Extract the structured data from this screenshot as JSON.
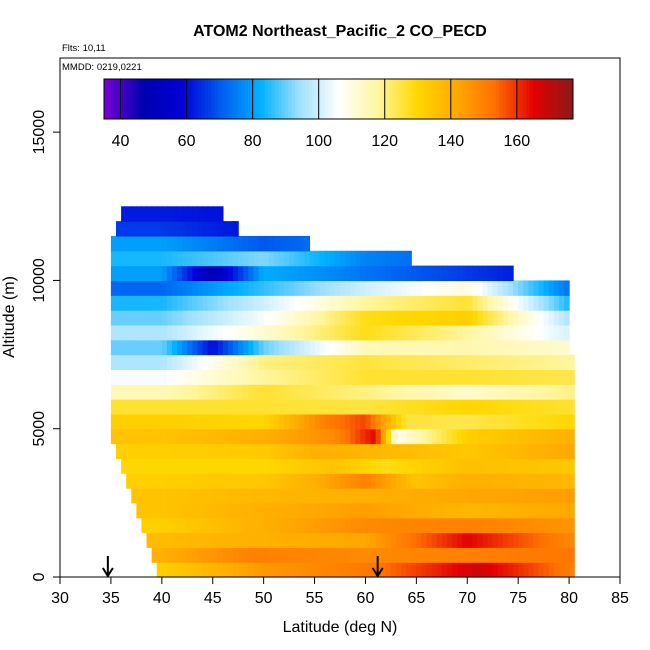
{
  "chart_data": {
    "type": "heatmap",
    "title": "ATOM2 Northeast_Pacific_2 CO_PECD",
    "flights_label": "Flts: 10,11",
    "dates_label": "MMDD: 0219,0221",
    "xlabel": "Latitude (deg N)",
    "ylabel": "Altitude (m)",
    "xlim": [
      30,
      85
    ],
    "ylim": [
      0,
      17500
    ],
    "x_ticks": [
      "30",
      "35",
      "40",
      "45",
      "50",
      "55",
      "60",
      "65",
      "70",
      "75",
      "80",
      "85"
    ],
    "y_ticks": [
      "0",
      "5000",
      "10000",
      "15000"
    ],
    "colorbar": {
      "min": 35,
      "max": 177,
      "tick_labels": [
        "40",
        "60",
        "80",
        "100",
        "120",
        "140",
        "160"
      ],
      "tick_values": [
        40,
        60,
        80,
        100,
        120,
        140,
        160
      ],
      "colors": [
        "#7a00d8",
        "#0000b0",
        "#0000d8",
        "#005cf0",
        "#00b0ff",
        "#9fe0ff",
        "#ffffff",
        "#fff6a0",
        "#ffd800",
        "#ffaa00",
        "#ff7000",
        "#e20000",
        "#8b1a1a"
      ]
    },
    "latitude_coverage": [
      {
        "alt": 0,
        "lat_min": 40,
        "lat_max": 80.5
      },
      {
        "alt": 5000,
        "lat_min": 35,
        "lat_max": 80.5
      },
      {
        "alt": 10000,
        "lat_min": 35,
        "lat_max": 79.5
      },
      {
        "alt": 11500,
        "lat_min": 35,
        "lat_max": 49
      },
      {
        "alt": 12000,
        "lat_min": 36,
        "lat_max": 46
      }
    ],
    "bands": [
      {
        "alt": 0,
        "stops": [
          [
            40,
            132
          ],
          [
            50,
            145
          ],
          [
            61,
            152
          ],
          [
            71,
            168
          ],
          [
            80.5,
            150
          ]
        ]
      },
      {
        "alt": 500,
        "stops": [
          [
            40,
            140
          ],
          [
            49,
            150
          ],
          [
            60,
            148
          ],
          [
            70,
            150
          ],
          [
            80.5,
            152
          ]
        ]
      },
      {
        "alt": 1000,
        "stops": [
          [
            40,
            137
          ],
          [
            50,
            140
          ],
          [
            60,
            142
          ],
          [
            70,
            165
          ],
          [
            80.5,
            148
          ]
        ]
      },
      {
        "alt": 1500,
        "stops": [
          [
            40,
            132
          ],
          [
            50,
            140
          ],
          [
            60,
            148
          ],
          [
            70,
            150
          ],
          [
            80.5,
            146
          ]
        ]
      },
      {
        "alt": 2000,
        "stops": [
          [
            40,
            135
          ],
          [
            50,
            140
          ],
          [
            60,
            144
          ],
          [
            70,
            138
          ],
          [
            80.5,
            142
          ]
        ]
      },
      {
        "alt": 2500,
        "stops": [
          [
            40,
            135
          ],
          [
            50,
            138
          ],
          [
            60,
            140
          ],
          [
            70,
            142
          ],
          [
            80.5,
            144
          ]
        ]
      },
      {
        "alt": 3000,
        "stops": [
          [
            40,
            132
          ],
          [
            50,
            134
          ],
          [
            55,
            140
          ],
          [
            60,
            150
          ],
          [
            65,
            135
          ],
          [
            70,
            140
          ],
          [
            80.5,
            138
          ]
        ]
      },
      {
        "alt": 3500,
        "stops": [
          [
            40,
            130
          ],
          [
            50,
            130
          ],
          [
            57,
            135
          ],
          [
            62,
            128
          ],
          [
            70,
            136
          ],
          [
            80.5,
            134
          ]
        ]
      },
      {
        "alt": 4000,
        "stops": [
          [
            40,
            132
          ],
          [
            50,
            133
          ],
          [
            55,
            140
          ],
          [
            61,
            138
          ],
          [
            70,
            134
          ],
          [
            80.5,
            142
          ]
        ]
      },
      {
        "alt": 4500,
        "stops": [
          [
            40,
            135
          ],
          [
            50,
            140
          ],
          [
            57,
            148
          ],
          [
            61,
            165
          ],
          [
            63,
            108
          ],
          [
            70,
            132
          ],
          [
            80.5,
            140
          ]
        ]
      },
      {
        "alt": 5000,
        "stops": [
          [
            40,
            132
          ],
          [
            50,
            130
          ],
          [
            56,
            150
          ],
          [
            60,
            158
          ],
          [
            64,
            125
          ],
          [
            70,
            124
          ],
          [
            80.5,
            130
          ]
        ]
      },
      {
        "alt": 5500,
        "stops": [
          [
            40,
            126
          ],
          [
            50,
            126
          ],
          [
            60,
            125
          ],
          [
            70,
            130
          ],
          [
            80.5,
            126
          ]
        ]
      },
      {
        "alt": 6000,
        "stops": [
          [
            40,
            115
          ],
          [
            50,
            126
          ],
          [
            60,
            120
          ],
          [
            70,
            112
          ],
          [
            80.5,
            120
          ]
        ]
      },
      {
        "alt": 6500,
        "stops": [
          [
            40,
            105
          ],
          [
            50,
            118
          ],
          [
            60,
            126
          ],
          [
            70,
            126
          ],
          [
            80.5,
            124
          ]
        ]
      },
      {
        "alt": 7000,
        "stops": [
          [
            40,
            96
          ],
          [
            50,
            120
          ],
          [
            60,
            125
          ],
          [
            70,
            122
          ],
          [
            80.5,
            118
          ]
        ]
      },
      {
        "alt": 7500,
        "stops": [
          [
            40,
            90
          ],
          [
            45,
            60
          ],
          [
            50,
            90
          ],
          [
            60,
            115
          ],
          [
            70,
            116
          ],
          [
            80.5,
            112
          ]
        ]
      },
      {
        "alt": 8000,
        "stops": [
          [
            40,
            96
          ],
          [
            50,
            112
          ],
          [
            60,
            128
          ],
          [
            70,
            118
          ],
          [
            80.5,
            100
          ]
        ]
      },
      {
        "alt": 8500,
        "stops": [
          [
            40,
            90
          ],
          [
            50,
            105
          ],
          [
            60,
            128
          ],
          [
            70,
            132
          ],
          [
            80.5,
            94
          ]
        ]
      },
      {
        "alt": 9000,
        "stops": [
          [
            40,
            84
          ],
          [
            50,
            100
          ],
          [
            60,
            118
          ],
          [
            70,
            126
          ],
          [
            80.5,
            82
          ]
        ]
      },
      {
        "alt": 9500,
        "stops": [
          [
            40,
            72
          ],
          [
            50,
            86
          ],
          [
            60,
            100
          ],
          [
            70,
            110
          ],
          [
            80.5,
            72
          ]
        ]
      },
      {
        "alt": 10000,
        "stops": [
          [
            40,
            80
          ],
          [
            45,
            48
          ],
          [
            50,
            82
          ],
          [
            60,
            74
          ],
          [
            70,
            66
          ],
          [
            80.5,
            58
          ]
        ]
      },
      {
        "alt": 10500,
        "stops": [
          [
            40,
            84
          ],
          [
            50,
            92
          ],
          [
            60,
            76
          ],
          [
            70,
            70
          ],
          [
            80.5,
            60
          ]
        ]
      },
      {
        "alt": 11000,
        "stops": [
          [
            40,
            80
          ],
          [
            50,
            70
          ],
          [
            60,
            76
          ],
          [
            70,
            60
          ],
          [
            80.5,
            62
          ]
        ]
      },
      {
        "alt": 11500,
        "stops": [
          [
            40,
            66
          ],
          [
            50,
            60
          ],
          [
            60,
            64
          ],
          [
            70,
            62
          ],
          [
            80.5,
            60
          ]
        ]
      },
      {
        "alt": 12000,
        "stops": [
          [
            40,
            62
          ],
          [
            50,
            60
          ],
          [
            60,
            60
          ],
          [
            70,
            60
          ],
          [
            80.5,
            60
          ]
        ]
      }
    ],
    "arrows": [
      {
        "lat": 34.7,
        "label": ""
      },
      {
        "lat": 61.2,
        "label": ""
      }
    ]
  }
}
